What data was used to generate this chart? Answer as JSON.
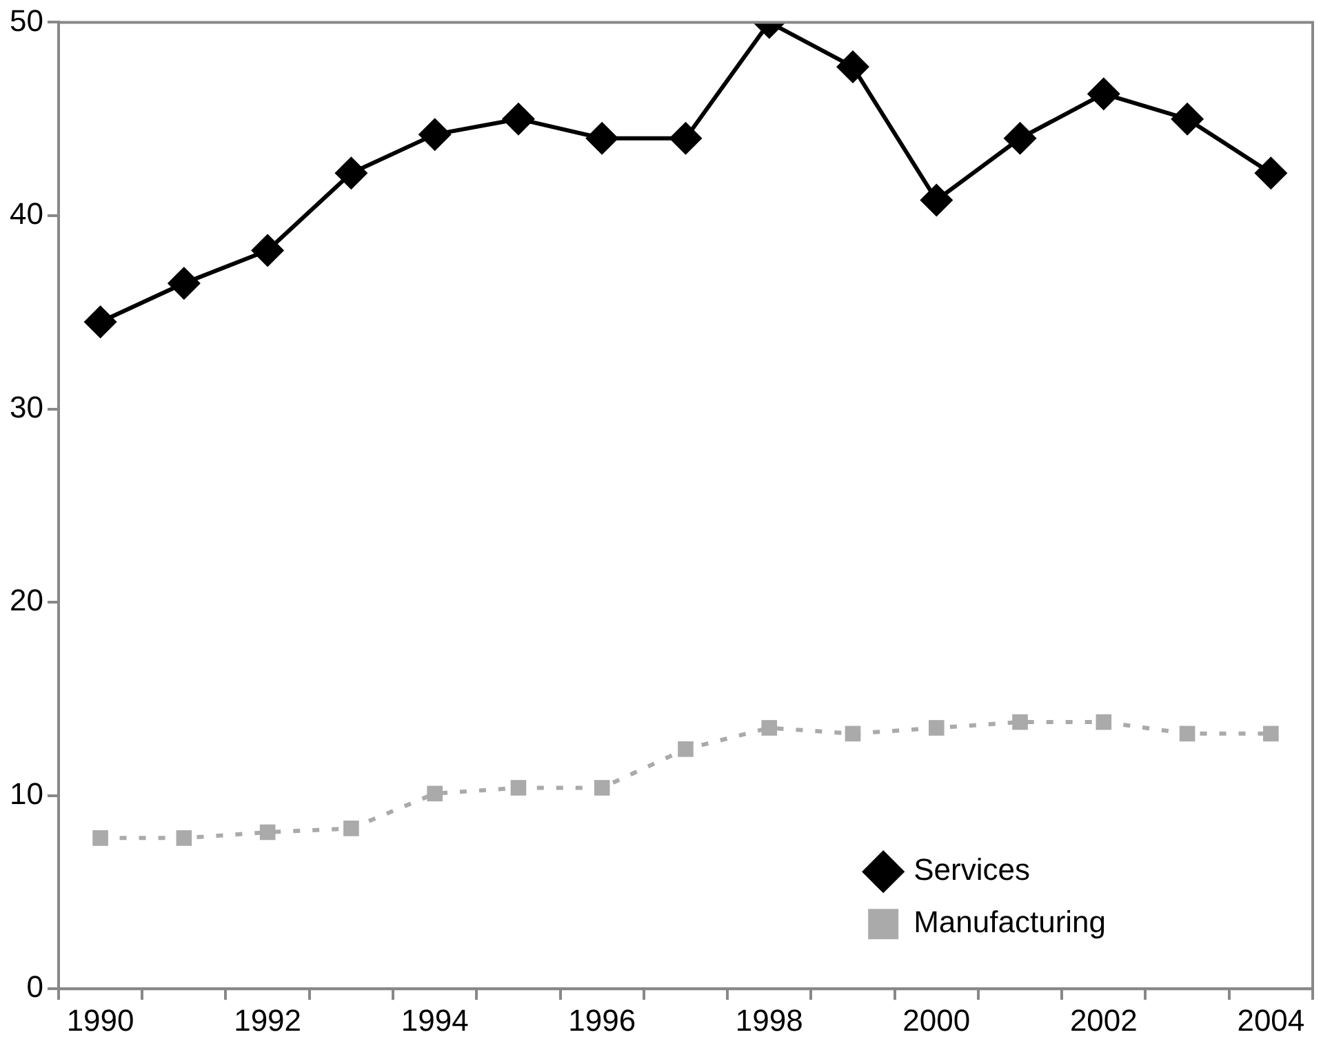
{
  "chart_data": {
    "type": "line",
    "categories": [
      "1990",
      null,
      "1992",
      null,
      "1994",
      null,
      "1996",
      null,
      "1998",
      null,
      "2000",
      null,
      "2002",
      null,
      "2004"
    ],
    "ylim": [
      0,
      50
    ],
    "yticks": [
      0,
      10,
      20,
      30,
      40,
      50
    ],
    "grid": false,
    "legend": "bottom right",
    "series": [
      {
        "name": "Services",
        "color": "#000000",
        "marker": "diamond",
        "line_style": "solid",
        "values": [
          34.5,
          36.5,
          38.2,
          42.2,
          44.2,
          45.0,
          44.0,
          44.0,
          50.0,
          47.7,
          40.8,
          44.0,
          46.3,
          45.0,
          42.2
        ]
      },
      {
        "name": "Manufacturing",
        "color": "#aaaaaa",
        "marker": "square",
        "line_style": "dashed",
        "values": [
          7.8,
          7.8,
          8.1,
          8.3,
          10.1,
          10.4,
          10.4,
          12.4,
          13.5,
          13.2,
          13.5,
          13.8,
          13.8,
          13.2,
          13.2
        ]
      }
    ]
  }
}
